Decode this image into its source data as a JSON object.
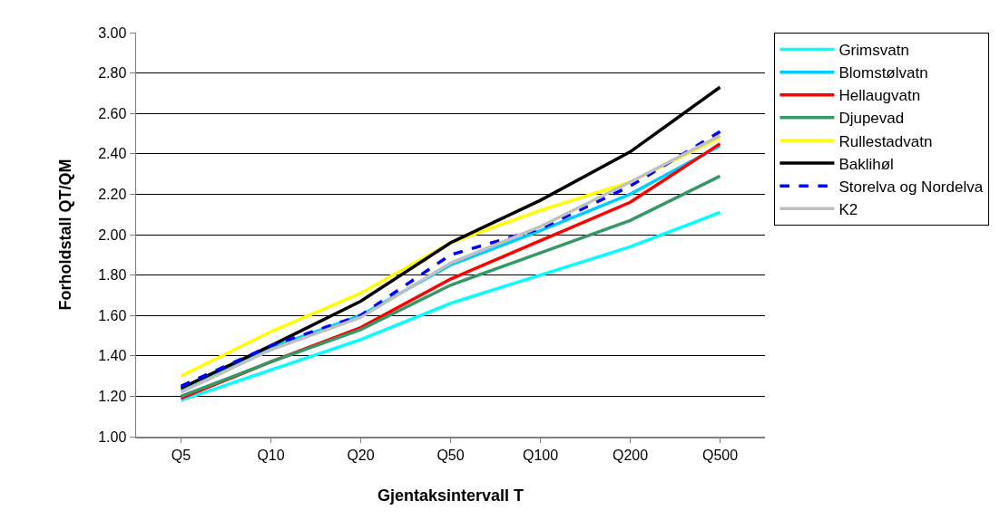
{
  "chart_data": {
    "type": "line",
    "xlabel": "Gjentaksintervall T",
    "ylabel": "Forholdstall QT/QM",
    "categories": [
      "Q5",
      "Q10",
      "Q20",
      "Q50",
      "Q100",
      "Q200",
      "Q500"
    ],
    "ylim": [
      1.0,
      3.0
    ],
    "yticks": [
      {
        "value": 1.0,
        "label": "1.00"
      },
      {
        "value": 1.2,
        "label": "1.20"
      },
      {
        "value": 1.4,
        "label": "1.40"
      },
      {
        "value": 1.6,
        "label": "1.60"
      },
      {
        "value": 1.8,
        "label": "1.80"
      },
      {
        "value": 2.0,
        "label": "2.00"
      },
      {
        "value": 2.2,
        "label": "2.20"
      },
      {
        "value": 2.4,
        "label": "2.40"
      },
      {
        "value": 2.6,
        "label": "2.60"
      },
      {
        "value": 2.8,
        "label": "2.80"
      },
      {
        "value": 3.0,
        "label": "3.00"
      }
    ],
    "grid": "y",
    "legend": "right",
    "marker": "none",
    "line_style": "solid",
    "series": [
      {
        "name": "Grimsvatn",
        "color": "#00ffff",
        "values": [
          1.18,
          1.33,
          1.48,
          1.66,
          1.8,
          1.94,
          2.11
        ]
      },
      {
        "name": "Blomstølvatn",
        "color": "#00ccff",
        "values": [
          1.23,
          1.44,
          1.6,
          1.85,
          2.02,
          2.2,
          2.44
        ]
      },
      {
        "name": "Hellaugvatn",
        "color": "#ff0000",
        "values": [
          1.19,
          1.37,
          1.54,
          1.78,
          1.97,
          2.16,
          2.45
        ]
      },
      {
        "name": "Djupevad",
        "color": "#339966",
        "values": [
          1.2,
          1.37,
          1.53,
          1.75,
          1.91,
          2.07,
          2.29
        ]
      },
      {
        "name": "Rullestadvatn",
        "color": "#ffff00",
        "values": [
          1.3,
          1.52,
          1.71,
          1.96,
          2.12,
          2.26,
          2.48
        ]
      },
      {
        "name": "Baklihøl",
        "color": "#000000",
        "values": [
          1.24,
          1.45,
          1.67,
          1.96,
          2.17,
          2.41,
          2.73
        ]
      },
      {
        "name": "Storelva og Nordelva",
        "color": "#0000ff",
        "line_style": "dashed",
        "values": [
          1.25,
          1.45,
          1.6,
          1.9,
          2.03,
          2.24,
          2.51
        ]
      },
      {
        "name": "K2",
        "color": "#c0c0c0",
        "values": [
          1.22,
          1.43,
          1.59,
          1.86,
          2.04,
          2.26,
          2.49
        ]
      }
    ]
  }
}
